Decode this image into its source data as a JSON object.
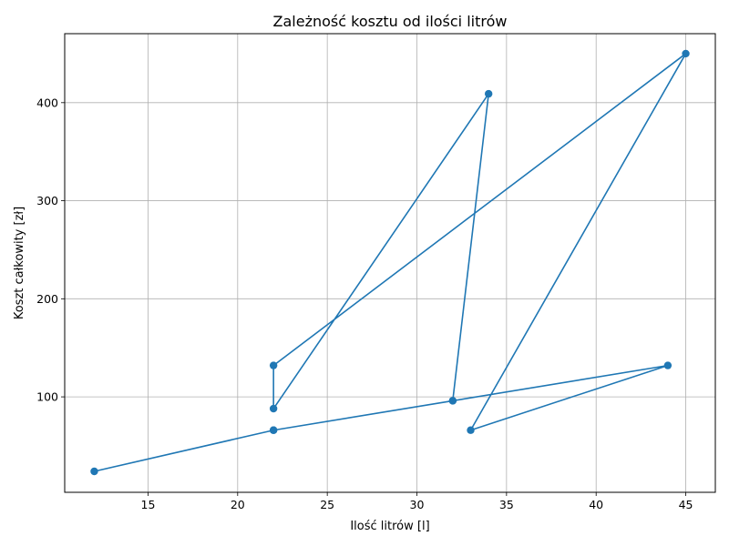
{
  "chart_data": {
    "type": "line",
    "title": "Zależność kosztu od ilości litrów",
    "xlabel": "Ilość litrów [l]",
    "ylabel": "Koszt całkowity [zł]",
    "xlim": [
      10.35,
      46.65
    ],
    "ylim": [
      2.65,
      470.35
    ],
    "xticks": [
      15,
      20,
      25,
      30,
      35,
      40,
      45
    ],
    "yticks": [
      100,
      200,
      300,
      400
    ],
    "grid": true,
    "series": [
      {
        "color": "#1f77b4",
        "marker": "circle",
        "points": [
          {
            "x": 12,
            "y": 24
          },
          {
            "x": 22,
            "y": 66
          },
          {
            "x": 32,
            "y": 96
          },
          {
            "x": 22,
            "y": 66
          },
          {
            "x": 44,
            "y": 132
          },
          {
            "x": 33,
            "y": 66
          },
          {
            "x": 45,
            "y": 450
          },
          {
            "x": 22,
            "y": 132
          },
          {
            "x": 22,
            "y": 88
          },
          {
            "x": 34,
            "y": 409
          },
          {
            "x": 32,
            "y": 96
          }
        ]
      }
    ]
  }
}
